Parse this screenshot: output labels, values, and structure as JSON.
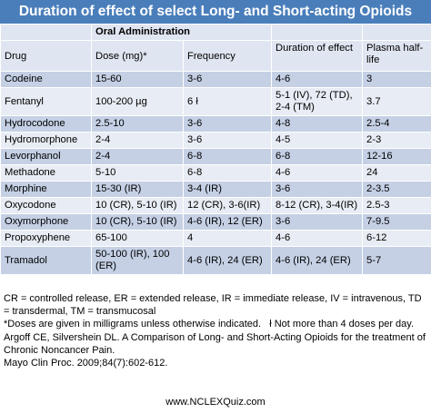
{
  "title": "Duration of effect of select Long- and Short-acting Opioids",
  "group_header": "Oral Administration",
  "columns": [
    "Drug",
    "Dose (mg)*",
    "Frequency",
    "Duration of effect",
    "Plasma half-life"
  ],
  "rows": [
    {
      "drug": "Codeine",
      "dose": "15-60",
      "frequency": "3-6",
      "duration": "4-6",
      "half_life": "3"
    },
    {
      "drug": "Fentanyl",
      "dose": "100-200 µg",
      "frequency": "6 ł",
      "duration": "5-1 (IV), 72 (TD), 2-4 (TM)",
      "half_life": "3.7"
    },
    {
      "drug": "Hydrocodone",
      "dose": "2.5-10",
      "frequency": "3-6",
      "duration": "4-8",
      "half_life": "2.5-4"
    },
    {
      "drug": "Hydromorphone",
      "dose": "2-4",
      "frequency": "3-6",
      "duration": "4-5",
      "half_life": "2-3"
    },
    {
      "drug": "Levorphanol",
      "dose": "2-4",
      "frequency": "6-8",
      "duration": "6-8",
      "half_life": "12-16"
    },
    {
      "drug": "Methadone",
      "dose": "5-10",
      "frequency": "6-8",
      "duration": "4-6",
      "half_life": "24"
    },
    {
      "drug": "Morphine",
      "dose": "15-30 (IR)",
      "frequency": "3-4 (IR)",
      "duration": "3-6",
      "half_life": "2-3.5"
    },
    {
      "drug": "Oxycodone",
      "dose": "10 (CR), 5-10 (IR)",
      "frequency": "12 (CR), 3-6(IR)",
      "duration": "8-12 (CR), 3-4(IR)",
      "half_life": "2.5-3"
    },
    {
      "drug": "Oxymorphone",
      "dose": "10 (CR), 5-10 (IR)",
      "frequency": "4-6 (IR), 12 (ER)",
      "duration": "3-6",
      "half_life": "7-9.5"
    },
    {
      "drug": "Propoxyphene",
      "dose": "65-100",
      "frequency": "4",
      "duration": "4-6",
      "half_life": "6-12"
    },
    {
      "drug": "Tramadol",
      "dose": "50-100 (IR), 100 (ER)",
      "frequency": "4-6 (IR), 24 (ER)",
      "duration": "4-6 (IR), 24 (ER)",
      "half_life": "5-7"
    }
  ],
  "footnotes": {
    "abbreviations": "CR = controlled release, ER = extended release, IR = immediate release, IV = intravenous, TD = transdermal, TM = transmucosal",
    "doses_note": "*Doses are given in milligrams unless otherwise indicated.   ł Not more than 4 doses per day.",
    "citation_line1": "Argoff CE, Silvershein DL. A Comparison of Long- and Short-Acting Opioids for the treatment of Chronic Noncancer Pain.",
    "citation_line2": "Mayo Clin Proc. 2009;84(7):602-612."
  },
  "website": "www.NCLEXQuiz.com",
  "colors": {
    "title_bar": "#4a7ebb",
    "row_dark": "#c5d0e5",
    "row_light": "#e8ecf4",
    "header": "#dfe5f1"
  }
}
